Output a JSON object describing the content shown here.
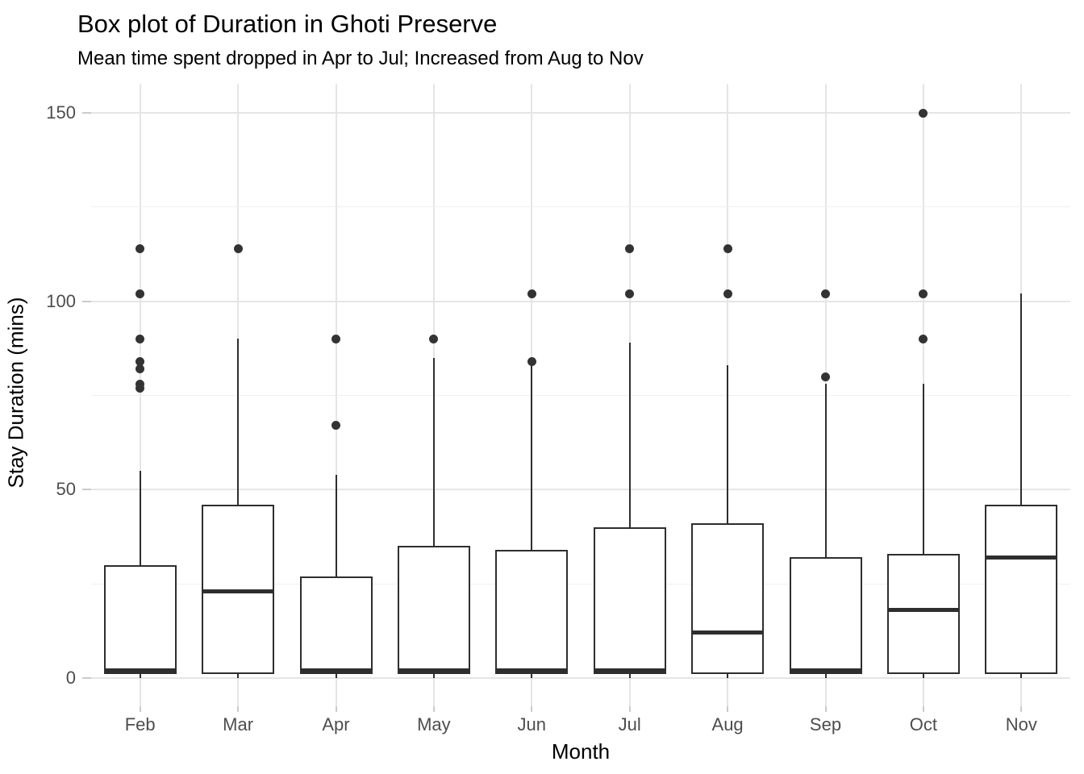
{
  "figure": {
    "title": "Box plot of Duration in Ghoti Preserve",
    "subtitle": "Mean time spent dropped in Apr to Jul; Increased from Aug to Nov"
  },
  "chart_data": {
    "type": "boxplot",
    "title": "Box plot of Duration in Ghoti Preserve",
    "subtitle": "Mean time spent dropped in Apr to Jul; Increased from Aug to Nov",
    "xlabel": "Month",
    "ylabel": "Stay Duration (mins)",
    "ylim": [
      -7.5,
      157.5
    ],
    "y_major_ticks": [
      0,
      50,
      100,
      150
    ],
    "y_minor_gridlines": [
      25,
      75,
      125
    ],
    "grid": "horizontal major+minor gridlines; vertical major gridline at each category; no legend; no panel border",
    "categories": [
      "Feb",
      "Mar",
      "Apr",
      "May",
      "Jun",
      "Jul",
      "Aug",
      "Sep",
      "Oct",
      "Nov"
    ],
    "series": [
      {
        "month": "Feb",
        "whisker_low": 0,
        "q1": 1,
        "median": 2,
        "q3": 30,
        "whisker_high": 55,
        "outliers": [
          77,
          78,
          82,
          84,
          90,
          102,
          114
        ]
      },
      {
        "month": "Mar",
        "whisker_low": 0,
        "q1": 1,
        "median": 23,
        "q3": 46,
        "whisker_high": 90,
        "outliers": [
          114
        ]
      },
      {
        "month": "Apr",
        "whisker_low": 0,
        "q1": 1,
        "median": 2,
        "q3": 27,
        "whisker_high": 54,
        "outliers": [
          67,
          90
        ]
      },
      {
        "month": "May",
        "whisker_low": 0,
        "q1": 1,
        "median": 2,
        "q3": 35,
        "whisker_high": 85,
        "outliers": [
          90
        ]
      },
      {
        "month": "Jun",
        "whisker_low": 0,
        "q1": 1,
        "median": 2,
        "q3": 34,
        "whisker_high": 83,
        "outliers": [
          84,
          102
        ]
      },
      {
        "month": "Jul",
        "whisker_low": 0,
        "q1": 1,
        "median": 2,
        "q3": 40,
        "whisker_high": 89,
        "outliers": [
          102,
          114
        ]
      },
      {
        "month": "Aug",
        "whisker_low": 0,
        "q1": 1,
        "median": 12,
        "q3": 41,
        "whisker_high": 83,
        "outliers": [
          102,
          114
        ]
      },
      {
        "month": "Sep",
        "whisker_low": 0,
        "q1": 1,
        "median": 2,
        "q3": 32,
        "whisker_high": 78,
        "outliers": [
          80,
          102
        ]
      },
      {
        "month": "Oct",
        "whisker_low": 0,
        "q1": 1,
        "median": 18,
        "q3": 33,
        "whisker_high": 78,
        "outliers": [
          90,
          102,
          150
        ]
      },
      {
        "month": "Nov",
        "whisker_low": 0,
        "q1": 1,
        "median": 32,
        "q3": 46,
        "whisker_high": 102,
        "outliers": []
      }
    ],
    "colors": {
      "box_stroke": "#2e2e2e",
      "outlier_dot": "#333333",
      "grid_major": "#e5e5e5",
      "grid_minor": "#efefef",
      "tick_mark": "#cbcbcb",
      "tick_label": "#4d4d4d",
      "text": "#000000",
      "background": "#ffffff"
    }
  }
}
